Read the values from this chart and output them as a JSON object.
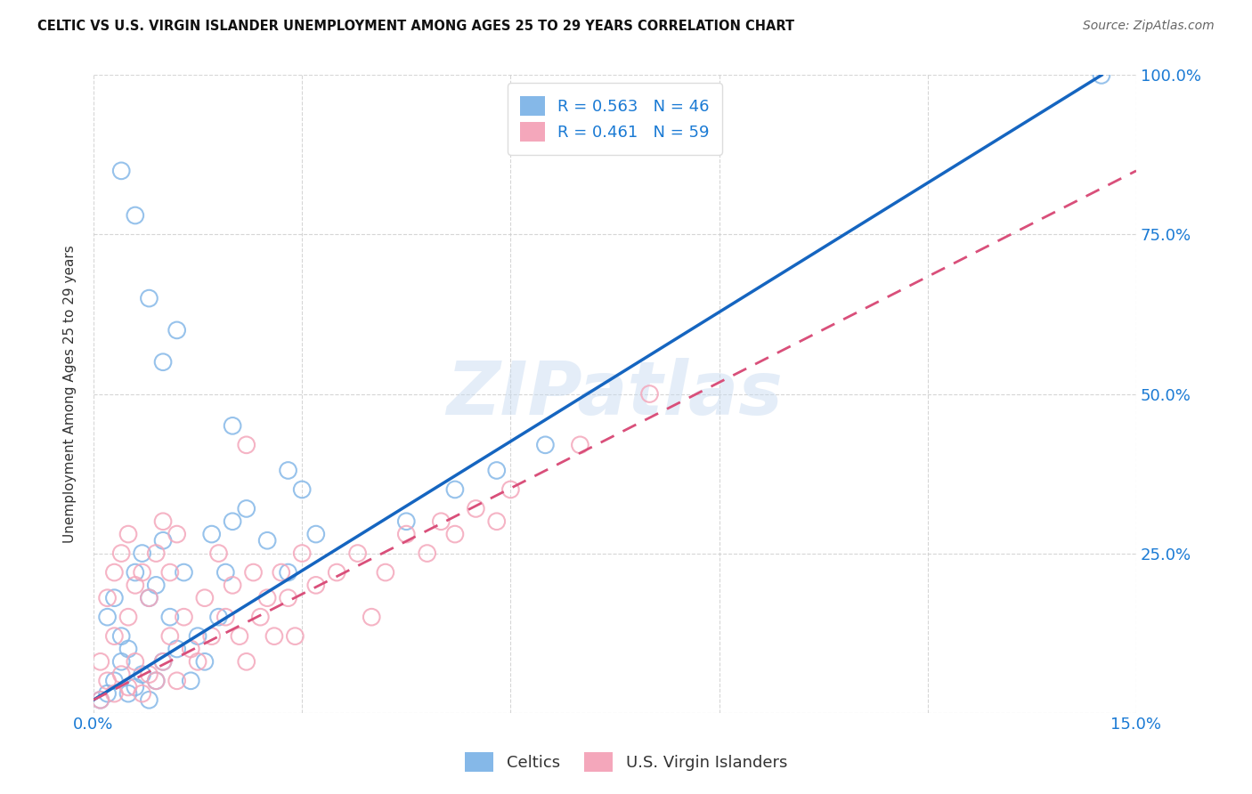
{
  "title": "CELTIC VS U.S. VIRGIN ISLANDER UNEMPLOYMENT AMONG AGES 25 TO 29 YEARS CORRELATION CHART",
  "source": "Source: ZipAtlas.com",
  "ylabel": "Unemployment Among Ages 25 to 29 years",
  "xlim": [
    0,
    0.15
  ],
  "ylim": [
    0,
    1.0
  ],
  "celtics_R": 0.563,
  "celtics_N": 46,
  "usvir_R": 0.461,
  "usvir_N": 59,
  "celtics_color": "#85b8e8",
  "usvir_color": "#f4a7bb",
  "celtics_line_color": "#1565c0",
  "usvir_line_color": "#d94f7a",
  "watermark_text": "ZIPatlas",
  "background_color": "#ffffff",
  "celtics_x": [
    0.001,
    0.002,
    0.002,
    0.003,
    0.003,
    0.004,
    0.004,
    0.005,
    0.005,
    0.006,
    0.006,
    0.007,
    0.007,
    0.008,
    0.008,
    0.009,
    0.009,
    0.01,
    0.01,
    0.011,
    0.012,
    0.013,
    0.014,
    0.015,
    0.016,
    0.017,
    0.018,
    0.019,
    0.02,
    0.022,
    0.025,
    0.028,
    0.03,
    0.032,
    0.045,
    0.052,
    0.058,
    0.065,
    0.004,
    0.006,
    0.008,
    0.01,
    0.012,
    0.02,
    0.028,
    0.145
  ],
  "celtics_y": [
    0.02,
    0.03,
    0.15,
    0.05,
    0.18,
    0.08,
    0.12,
    0.03,
    0.1,
    0.04,
    0.22,
    0.06,
    0.25,
    0.02,
    0.18,
    0.05,
    0.2,
    0.08,
    0.27,
    0.15,
    0.1,
    0.22,
    0.05,
    0.12,
    0.08,
    0.28,
    0.15,
    0.22,
    0.3,
    0.32,
    0.27,
    0.22,
    0.35,
    0.28,
    0.3,
    0.35,
    0.38,
    0.42,
    0.85,
    0.78,
    0.65,
    0.55,
    0.6,
    0.45,
    0.38,
    1.0
  ],
  "usvir_x": [
    0.001,
    0.001,
    0.002,
    0.002,
    0.003,
    0.003,
    0.003,
    0.004,
    0.004,
    0.005,
    0.005,
    0.005,
    0.006,
    0.006,
    0.007,
    0.007,
    0.008,
    0.008,
    0.009,
    0.009,
    0.01,
    0.01,
    0.011,
    0.011,
    0.012,
    0.012,
    0.013,
    0.014,
    0.015,
    0.016,
    0.017,
    0.018,
    0.019,
    0.02,
    0.021,
    0.022,
    0.022,
    0.023,
    0.024,
    0.025,
    0.026,
    0.027,
    0.028,
    0.029,
    0.03,
    0.032,
    0.035,
    0.038,
    0.04,
    0.042,
    0.045,
    0.048,
    0.05,
    0.052,
    0.055,
    0.058,
    0.06,
    0.07,
    0.08
  ],
  "usvir_y": [
    0.02,
    0.08,
    0.05,
    0.18,
    0.03,
    0.12,
    0.22,
    0.06,
    0.25,
    0.04,
    0.15,
    0.28,
    0.08,
    0.2,
    0.03,
    0.22,
    0.06,
    0.18,
    0.05,
    0.25,
    0.08,
    0.3,
    0.12,
    0.22,
    0.05,
    0.28,
    0.15,
    0.1,
    0.08,
    0.18,
    0.12,
    0.25,
    0.15,
    0.2,
    0.12,
    0.42,
    0.08,
    0.22,
    0.15,
    0.18,
    0.12,
    0.22,
    0.18,
    0.12,
    0.25,
    0.2,
    0.22,
    0.25,
    0.15,
    0.22,
    0.28,
    0.25,
    0.3,
    0.28,
    0.32,
    0.3,
    0.35,
    0.42,
    0.5
  ]
}
